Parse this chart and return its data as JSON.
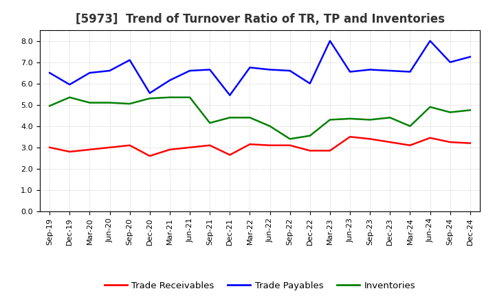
{
  "title": "[5973]  Trend of Turnover Ratio of TR, TP and Inventories",
  "x_labels": [
    "Sep-19",
    "Dec-19",
    "Mar-20",
    "Jun-20",
    "Sep-20",
    "Dec-20",
    "Mar-21",
    "Jun-21",
    "Sep-21",
    "Dec-21",
    "Mar-22",
    "Jun-22",
    "Sep-22",
    "Dec-22",
    "Mar-23",
    "Jun-23",
    "Sep-23",
    "Dec-23",
    "Mar-24",
    "Jun-24",
    "Sep-24",
    "Dec-24"
  ],
  "trade_receivables": [
    3.0,
    2.8,
    2.9,
    3.0,
    3.1,
    2.6,
    2.9,
    3.0,
    3.1,
    2.65,
    3.15,
    3.1,
    3.1,
    2.85,
    2.85,
    3.5,
    3.4,
    3.25,
    3.1,
    3.45,
    3.25,
    3.2
  ],
  "trade_payables": [
    6.5,
    5.95,
    6.5,
    6.6,
    7.1,
    5.55,
    6.15,
    6.6,
    6.65,
    5.45,
    6.75,
    6.65,
    6.6,
    6.0,
    8.0,
    6.55,
    6.65,
    6.6,
    6.55,
    8.0,
    7.0,
    7.25
  ],
  "inventories": [
    4.95,
    5.35,
    5.1,
    5.1,
    5.05,
    5.3,
    5.35,
    5.35,
    4.15,
    4.4,
    4.4,
    4.0,
    3.4,
    3.55,
    4.3,
    4.35,
    4.3,
    4.4,
    4.0,
    4.9,
    4.65,
    4.75
  ],
  "ylim": [
    0.0,
    8.5
  ],
  "yticks": [
    0.0,
    1.0,
    2.0,
    3.0,
    4.0,
    5.0,
    6.0,
    7.0,
    8.0
  ],
  "colors": {
    "trade_receivables": "#ff0000",
    "trade_payables": "#0000ff",
    "inventories": "#008000"
  },
  "legend_labels": [
    "Trade Receivables",
    "Trade Payables",
    "Inventories"
  ],
  "background_color": "#ffffff",
  "grid_color": "#aaaaaa",
  "title_fontsize": 12,
  "tick_fontsize": 8,
  "legend_fontsize": 9.5
}
